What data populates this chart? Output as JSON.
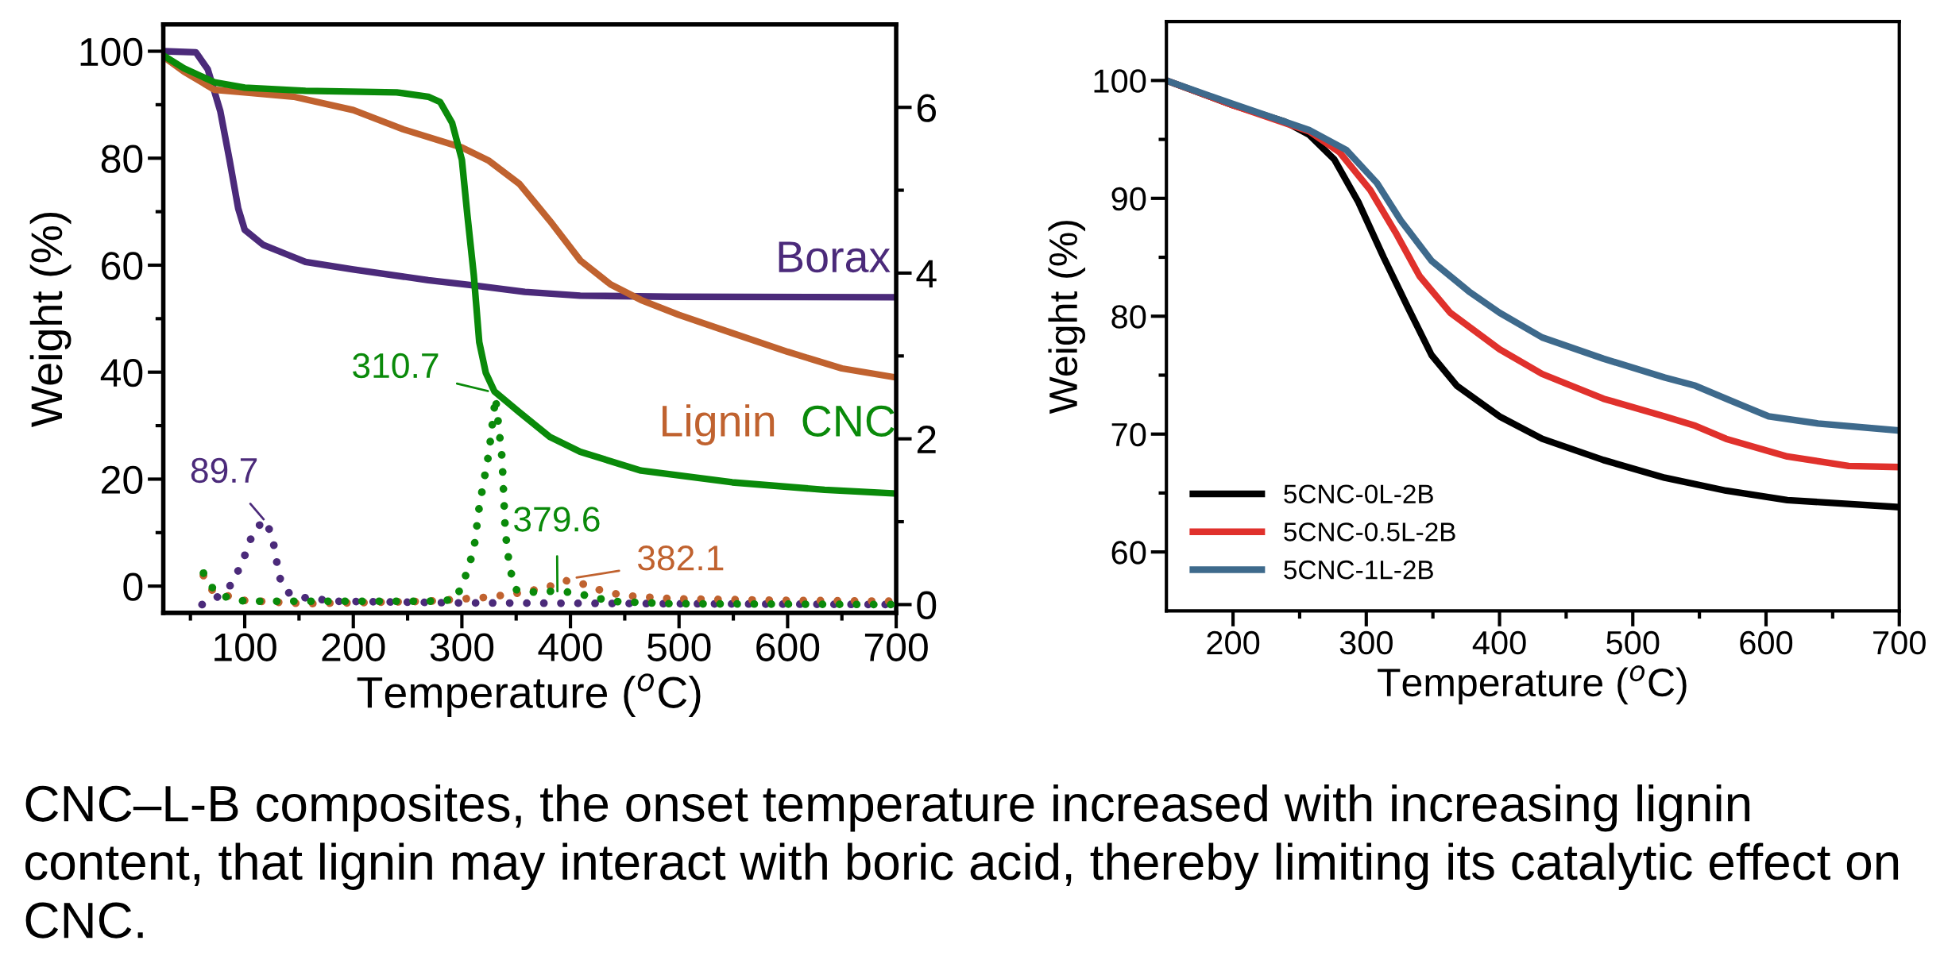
{
  "chart_data": [
    {
      "type": "line",
      "xlabel": "Temperature ($^{o}$C)",
      "ylabel": "Weight (%)",
      "xlim": [
        25,
        700
      ],
      "xticks": [
        {
          "value": 50,
          "label": null
        },
        100,
        {
          "value": 150,
          "label": null
        },
        200,
        {
          "value": 250,
          "label": null
        },
        300,
        {
          "value": 350,
          "label": null
        },
        400,
        {
          "value": 450,
          "label": null
        },
        500,
        {
          "value": 550,
          "label": null
        },
        600,
        {
          "value": 650,
          "label": null
        },
        700
      ],
      "ylim": [
        -5,
        105
      ],
      "yticks": [
        0,
        {
          "value": 10,
          "label": null
        },
        20,
        {
          "value": 30,
          "label": null
        },
        40,
        {
          "value": 50,
          "label": null
        },
        60,
        {
          "value": 70,
          "label": null
        },
        80,
        {
          "value": 90,
          "label": null
        },
        100
      ],
      "y2lim": [
        -0.1,
        7.0
      ],
      "y2ticks": [
        0,
        {
          "value": 1,
          "label": null
        },
        2,
        {
          "value": 3,
          "label": null
        },
        4,
        {
          "value": 5,
          "label": null
        },
        6
      ],
      "grid": false,
      "legend": false,
      "marker": "none",
      "series": [
        {
          "name": "Borax",
          "color": "#4b2a7a",
          "line_style": "solid",
          "x": [
            25,
            55,
            66,
            77.5,
            86,
            94,
            100,
            117,
            139,
            156,
            200,
            269,
            312,
            358,
            409,
            493,
            700
          ],
          "values": [
            100,
            99.8,
            96.6,
            88.8,
            79.7,
            70.6,
            66.6,
            63.8,
            62,
            60.6,
            59.2,
            57.2,
            56.2,
            55,
            54.3,
            54.1,
            54
          ]
        },
        {
          "name": "Lignin",
          "color": "#c0622f",
          "line_style": "solid",
          "x": [
            25.8,
            44,
            72,
            100,
            145,
            200,
            246,
            300,
            325,
            353,
            381,
            409,
            437,
            465,
            500,
            549,
            600,
            650,
            700
          ],
          "values": [
            98.9,
            96.2,
            92.8,
            92.3,
            91.5,
            89,
            85.4,
            82,
            79.5,
            75.2,
            68.3,
            60.9,
            56.4,
            53.5,
            50.7,
            47.3,
            43.8,
            40.7,
            39
          ]
        },
        {
          "name": "CNC",
          "color": "#0a8a0a",
          "line_style": "solid",
          "x": [
            25.8,
            44,
            72,
            100,
            156,
            240,
            269,
            280,
            291,
            300,
            305,
            311,
            316,
            322,
            330,
            353,
            381,
            409,
            465,
            549,
            634,
            700
          ],
          "values": [
            99.1,
            96.8,
            94.2,
            93.2,
            92.6,
            92.3,
            91.5,
            90.5,
            86.6,
            79.7,
            69.5,
            58.1,
            45.6,
            39.9,
            36.4,
            32.5,
            27.9,
            25.1,
            21.6,
            19.4,
            18,
            17.3
          ]
        },
        {
          "color": "#4b2a7a",
          "line_style": "dotted",
          "axis": "y2",
          "x": [
            60.7,
            77.5,
            89,
            100,
            108,
            118,
            125,
            132,
            139,
            151,
            184,
            300,
            500,
            700
          ],
          "values": [
            0,
            0.11,
            0.26,
            0.59,
            0.88,
            1.02,
            0.85,
            0.33,
            0.15,
            0.09,
            0.04,
            0.02,
            0.01,
            0
          ]
        },
        {
          "color": "#c0622f",
          "line_style": "dotted",
          "axis": "y2",
          "x": [
            62,
            69,
            83,
            100,
            156,
            269,
            325,
            358,
            381,
            395,
            409,
            426,
            448,
            493,
            605,
            700
          ],
          "values": [
            0.35,
            0.18,
            0.11,
            0.05,
            0.01,
            0.04,
            0.09,
            0.15,
            0.22,
            0.29,
            0.26,
            0.18,
            0.11,
            0.07,
            0.05,
            0.04
          ]
        },
        {
          "color": "#0a8a0a",
          "line_style": "dotted",
          "axis": "y2",
          "x": [
            62,
            69,
            77.5,
            100,
            269,
            294,
            302,
            311,
            316,
            325,
            331,
            337,
            340,
            344,
            350,
            364,
            381,
            398,
            415,
            437,
            493,
            700
          ],
          "values": [
            0.38,
            0.22,
            0.11,
            0.04,
            0.04,
            0.06,
            0.29,
            0.66,
            1.18,
            1.84,
            2.5,
            1.77,
            0.88,
            0.44,
            0.18,
            0.15,
            0.16,
            0.15,
            0.11,
            0.04,
            0.01,
            0
          ]
        }
      ],
      "annotations": [
        "89.7",
        "310.7",
        {
          "text": "379.6",
          "x": 388,
          "y": 0.16
        },
        "382.1",
        "CNC–L-B composites, the onset temperature increased with increasing lignin content, that lignin may interact with boric acid, thereby limiting its catalytic effect on CNC."
      ]
    },
    {
      "type": "line",
      "xlabel": "Temperature ($^{o}$C)",
      "ylabel": "Weight (%)",
      "xlim": [
        150,
        700
      ],
      "xticks": [
        200,
        {
          "value": 250,
          "label": null
        },
        300,
        {
          "value": 350,
          "label": null
        },
        400,
        {
          "value": 450,
          "label": null
        },
        500,
        {
          "value": 550,
          "label": null
        },
        600,
        {
          "value": 650,
          "label": null
        },
        700
      ],
      "ylim": [
        55,
        105
      ],
      "yticks": [
        60,
        {
          "value": 65,
          "label": null
        },
        70,
        {
          "value": 75,
          "label": null
        },
        80,
        {
          "value": 85,
          "label": null
        },
        90,
        {
          "value": 95,
          "label": null
        },
        100
      ],
      "grid": false,
      "legend": "bottom left",
      "marker": "none",
      "line_style": "solid",
      "series": [
        {
          "name": "5CNC-0L-2B",
          "color": "#000000",
          "x": [
            150,
            200,
            239,
            257,
            276,
            294,
            313,
            331,
            349,
            368,
            400,
            432,
            478,
            524,
            570,
            616,
            700
          ],
          "values": [
            100,
            97.9,
            96.5,
            95.4,
            93.3,
            89.7,
            85,
            80.8,
            76.7,
            74.1,
            71.5,
            69.6,
            67.8,
            66.3,
            65.2,
            64.4,
            63.8
          ]
        },
        {
          "name": "5CNC-0.5L-2B",
          "color": "#e0312c",
          "x": [
            150,
            200,
            257,
            280,
            303,
            322,
            340,
            363,
            400,
            432,
            478,
            524,
            547,
            570,
            616,
            662,
            700
          ],
          "values": [
            100,
            97.9,
            95.7,
            93.9,
            90.7,
            87.1,
            83.4,
            80.3,
            77.2,
            75.1,
            73,
            71.5,
            70.7,
            69.6,
            68.1,
            67.3,
            67.2
          ]
        },
        {
          "name": "5CNC-1L-2B",
          "color": "#3e6a8c",
          "x": [
            150,
            200,
            257,
            285,
            308,
            326,
            349,
            377,
            400,
            432,
            478,
            524,
            547,
            570,
            602,
            639,
            700
          ],
          "values": [
            100,
            98,
            95.8,
            94.1,
            91.3,
            88.1,
            84.7,
            82.1,
            80.3,
            78.2,
            76.4,
            74.8,
            74.1,
            73,
            71.5,
            70.9,
            70.3
          ]
        }
      ]
    }
  ]
}
